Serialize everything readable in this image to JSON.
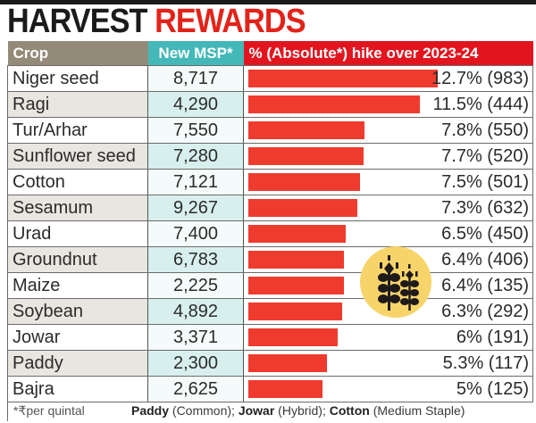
{
  "title": {
    "part1": "HARVEST",
    "part2": "REWARDS"
  },
  "colors": {
    "title_black": "#1c1a1a",
    "title_red": "#e2231a",
    "header_crop": "#948a78",
    "header_msp": "#44b8b8",
    "header_hike": "#e2151f",
    "bar": "#ef3b2e",
    "icon_circle": "#f7d46a"
  },
  "table": {
    "headers": {
      "crop": "Crop",
      "msp": "New MSP*",
      "hike": "% (Absolute*) hike over 2023-24"
    },
    "rows": [
      {
        "crop": "Niger seed",
        "msp": "8,717",
        "pct": 12.7,
        "abs": 983,
        "label": "12.7% (983)"
      },
      {
        "crop": "Ragi",
        "msp": "4,290",
        "pct": 11.5,
        "abs": 444,
        "label": "11.5% (444)"
      },
      {
        "crop": "Tur/Arhar",
        "msp": "7,550",
        "pct": 7.8,
        "abs": 550,
        "label": "7.8% (550)"
      },
      {
        "crop": "Sunflower seed",
        "msp": "7,280",
        "pct": 7.7,
        "abs": 520,
        "label": "7.7% (520)"
      },
      {
        "crop": "Cotton",
        "msp": "7,121",
        "pct": 7.5,
        "abs": 501,
        "label": "7.5% (501)"
      },
      {
        "crop": "Sesamum",
        "msp": "9,267",
        "pct": 7.3,
        "abs": 632,
        "label": "7.3% (632)"
      },
      {
        "crop": "Urad",
        "msp": "7,400",
        "pct": 6.5,
        "abs": 450,
        "label": "6.5% (450)"
      },
      {
        "crop": "Groundnut",
        "msp": "6,783",
        "pct": 6.4,
        "abs": 406,
        "label": "6.4% (406)"
      },
      {
        "crop": "Maize",
        "msp": "2,225",
        "pct": 6.4,
        "abs": 135,
        "label": "6.4% (135)"
      },
      {
        "crop": "Soybean",
        "msp": "4,892",
        "pct": 6.3,
        "abs": 292,
        "label": "6.3% (292)"
      },
      {
        "crop": "Jowar",
        "msp": "3,371",
        "pct": 6.0,
        "abs": 191,
        "label": "6% (191)"
      },
      {
        "crop": "Paddy",
        "msp": "2,300",
        "pct": 5.3,
        "abs": 117,
        "label": "5.3% (117)"
      },
      {
        "crop": "Bajra",
        "msp": "2,625",
        "pct": 5.0,
        "abs": 125,
        "label": "5% (125)"
      }
    ]
  },
  "footer": {
    "note": "*₹per quintal",
    "paddy_bold": "Paddy",
    "paddy_rest": " (Common); ",
    "jowar_bold": "Jowar",
    "jowar_rest": " (Hybrid); ",
    "cotton_bold": "Cotton",
    "cotton_rest": " (Medium Staple)"
  },
  "icon": "wheat-icon",
  "chart_data": {
    "type": "bar",
    "orientation": "horizontal",
    "title": "HARVEST REWARDS",
    "categories": [
      "Niger seed",
      "Ragi",
      "Tur/Arhar",
      "Sunflower seed",
      "Cotton",
      "Sesamum",
      "Urad",
      "Groundnut",
      "Maize",
      "Soybean",
      "Jowar",
      "Paddy",
      "Bajra"
    ],
    "series": [
      {
        "name": "% hike over 2023-24",
        "values": [
          12.7,
          11.5,
          7.8,
          7.7,
          7.5,
          7.3,
          6.5,
          6.4,
          6.4,
          6.3,
          6.0,
          5.3,
          5.0
        ]
      },
      {
        "name": "Absolute hike (₹ per quintal)",
        "values": [
          983,
          444,
          550,
          520,
          501,
          632,
          450,
          406,
          135,
          292,
          191,
          117,
          125
        ]
      },
      {
        "name": "New MSP (₹ per quintal)",
        "values": [
          8717,
          4290,
          7550,
          7280,
          7121,
          9267,
          7400,
          6783,
          2225,
          4892,
          3371,
          2300,
          2625
        ]
      }
    ],
    "columns": [
      "Crop",
      "New MSP*",
      "% (Absolute*) hike over 2023-24"
    ],
    "xlabel": "",
    "ylabel": "",
    "grid": false,
    "legend": "none",
    "notes": [
      "*₹per quintal",
      "Paddy (Common); Jowar (Hybrid); Cotton (Medium Staple)"
    ]
  }
}
